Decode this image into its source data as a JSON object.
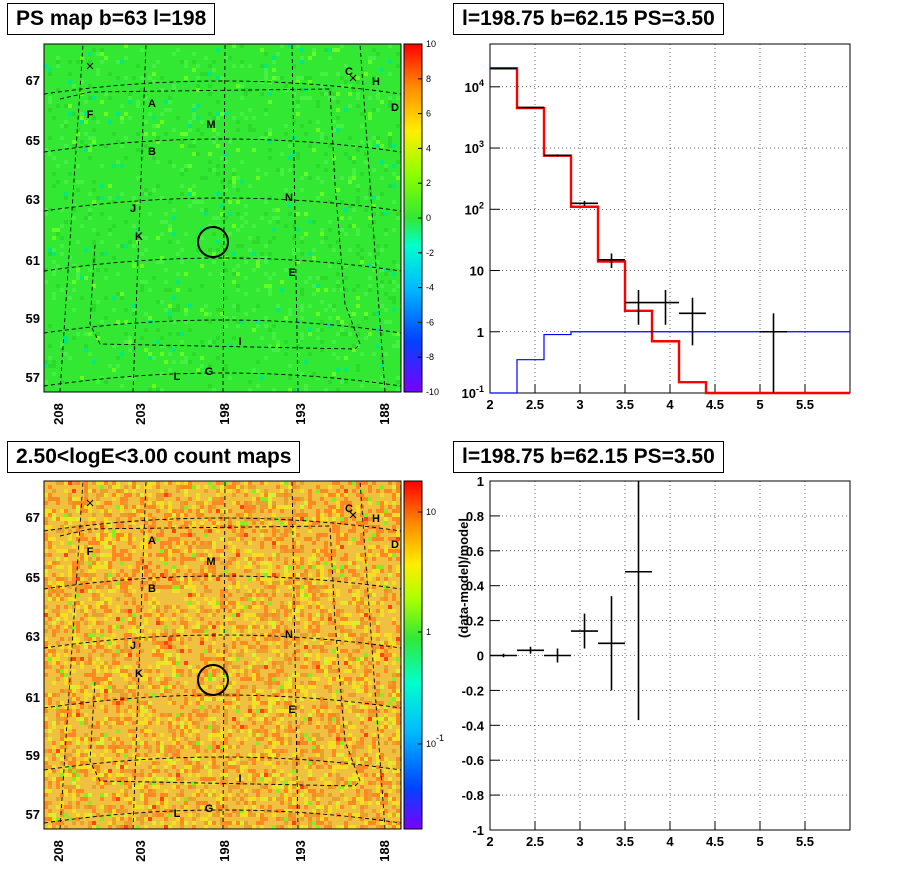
{
  "panels": {
    "tl_title": "PS map b=63 l=198",
    "tr_title": "l=198.75 b=62.15 PS=3.50",
    "bl_title": "2.50<logE<3.00 count maps",
    "br_title": "l=198.75 b=62.15 PS=3.50"
  },
  "chart_data": [
    {
      "type": "heatmap",
      "title": "PS map b=63 l=198",
      "x_ticks": [
        "208",
        "203",
        "198",
        "193",
        "188"
      ],
      "y_ticks": [
        "67",
        "65",
        "63",
        "61",
        "59",
        "57"
      ],
      "colorbar_ticks": [
        "10",
        "8",
        "6",
        "4",
        "2",
        "0",
        "-2",
        "-4",
        "-6",
        "-8",
        "-10"
      ],
      "zlim": [
        -10,
        10
      ],
      "source_labels": [
        "A",
        "B",
        "C",
        "D",
        "E",
        "F",
        "G",
        "H",
        "I",
        "J",
        "K",
        "L",
        "M",
        "N"
      ],
      "colors": {
        "dominant": "#33e833"
      }
    },
    {
      "type": "line",
      "title": "l=198.75 b=62.15 PS=3.50",
      "yscale": "log",
      "xlim": [
        2,
        6
      ],
      "ylim": [
        0.1,
        50000
      ],
      "x_ticks": [
        "2",
        "2.5",
        "3",
        "3.5",
        "4",
        "4.5",
        "5",
        "5.5"
      ],
      "y_ticks": [
        "10^{-1}",
        "1",
        "10",
        "10^{2}",
        "10^{3}",
        "10^{4}"
      ],
      "grid": true,
      "series": [
        {
          "color": "#ff0000",
          "style": "step",
          "edges": [
            2,
            2.3,
            2.6,
            2.9,
            3.2,
            3.5,
            3.8,
            4.1,
            4.4,
            6
          ],
          "values": [
            20000,
            4500,
            750,
            110,
            14,
            2.2,
            0.7,
            0.15,
            0.09
          ]
        },
        {
          "color": "#0000ff",
          "style": "step",
          "edges": [
            2,
            2.3,
            2.6,
            2.9,
            3.2,
            3.5,
            3.8,
            4.1,
            4.4,
            6
          ],
          "values": [
            0.1,
            0.35,
            0.9,
            1.0,
            1.0,
            1.0,
            1.0,
            1.0,
            1.0
          ]
        },
        {
          "color": "#000000",
          "style": "errorbar",
          "points": [
            {
              "x": 2.15,
              "xerr": 0.15,
              "y": 20000,
              "ylo": 19800,
              "yhi": 20200
            },
            {
              "x": 2.45,
              "xerr": 0.15,
              "y": 4600,
              "ylo": 4500,
              "yhi": 4700
            },
            {
              "x": 2.75,
              "xerr": 0.15,
              "y": 760,
              "ylo": 730,
              "yhi": 790
            },
            {
              "x": 3.05,
              "xerr": 0.15,
              "y": 125,
              "ylo": 113,
              "yhi": 137
            },
            {
              "x": 3.35,
              "xerr": 0.15,
              "y": 15,
              "ylo": 11,
              "yhi": 19
            },
            {
              "x": 3.65,
              "xerr": 0.15,
              "y": 3,
              "ylo": 1.3,
              "yhi": 4.8
            },
            {
              "x": 3.95,
              "xerr": 0.15,
              "y": 3,
              "ylo": 1.3,
              "yhi": 4.8
            },
            {
              "x": 4.25,
              "xerr": 0.15,
              "y": 2,
              "ylo": 0.6,
              "yhi": 3.6
            },
            {
              "x": 5.15,
              "xerr": 0.15,
              "y": 1,
              "ylo": 0.1,
              "yhi": 2.0
            }
          ]
        }
      ]
    },
    {
      "type": "heatmap",
      "title": "2.50<logE<3.00 count maps",
      "x_ticks": [
        "208",
        "203",
        "198",
        "193",
        "188"
      ],
      "y_ticks": [
        "67",
        "65",
        "63",
        "61",
        "59",
        "57"
      ],
      "colorbar_ticks": [
        "10",
        "1",
        "10^{-1}"
      ],
      "zscale": "log",
      "source_labels": [
        "A",
        "B",
        "C",
        "D",
        "E",
        "F",
        "G",
        "H",
        "I",
        "J",
        "K",
        "L",
        "M",
        "N"
      ],
      "colors": {
        "dominant": "#f0c040"
      }
    },
    {
      "type": "scatter",
      "title": "l=198.75 b=62.15 PS=3.50",
      "ylabel": "(data-model)/model",
      "xlim": [
        2,
        6
      ],
      "ylim": [
        -1,
        1
      ],
      "x_ticks": [
        "2",
        "2.5",
        "3",
        "3.5",
        "4",
        "4.5",
        "5",
        "5.5"
      ],
      "y_ticks": [
        "1",
        "0.8",
        "0.6",
        "0.4",
        "0.2",
        "0",
        "-0.2",
        "-0.4",
        "-0.6",
        "-0.8",
        "-1"
      ],
      "grid": true,
      "points": [
        {
          "x": 2.15,
          "xerr": 0.15,
          "y": 0.0,
          "ylo": -0.01,
          "yhi": 0.01
        },
        {
          "x": 2.45,
          "xerr": 0.15,
          "y": 0.03,
          "ylo": 0.01,
          "yhi": 0.05
        },
        {
          "x": 2.75,
          "xerr": 0.15,
          "y": 0.0,
          "ylo": -0.04,
          "yhi": 0.04
        },
        {
          "x": 3.05,
          "xerr": 0.15,
          "y": 0.14,
          "ylo": 0.04,
          "yhi": 0.24
        },
        {
          "x": 3.35,
          "xerr": 0.15,
          "y": 0.07,
          "ylo": -0.2,
          "yhi": 0.34
        },
        {
          "x": 3.65,
          "xerr": 0.15,
          "y": 0.48,
          "ylo": -0.37,
          "yhi": 1.0
        }
      ]
    }
  ]
}
